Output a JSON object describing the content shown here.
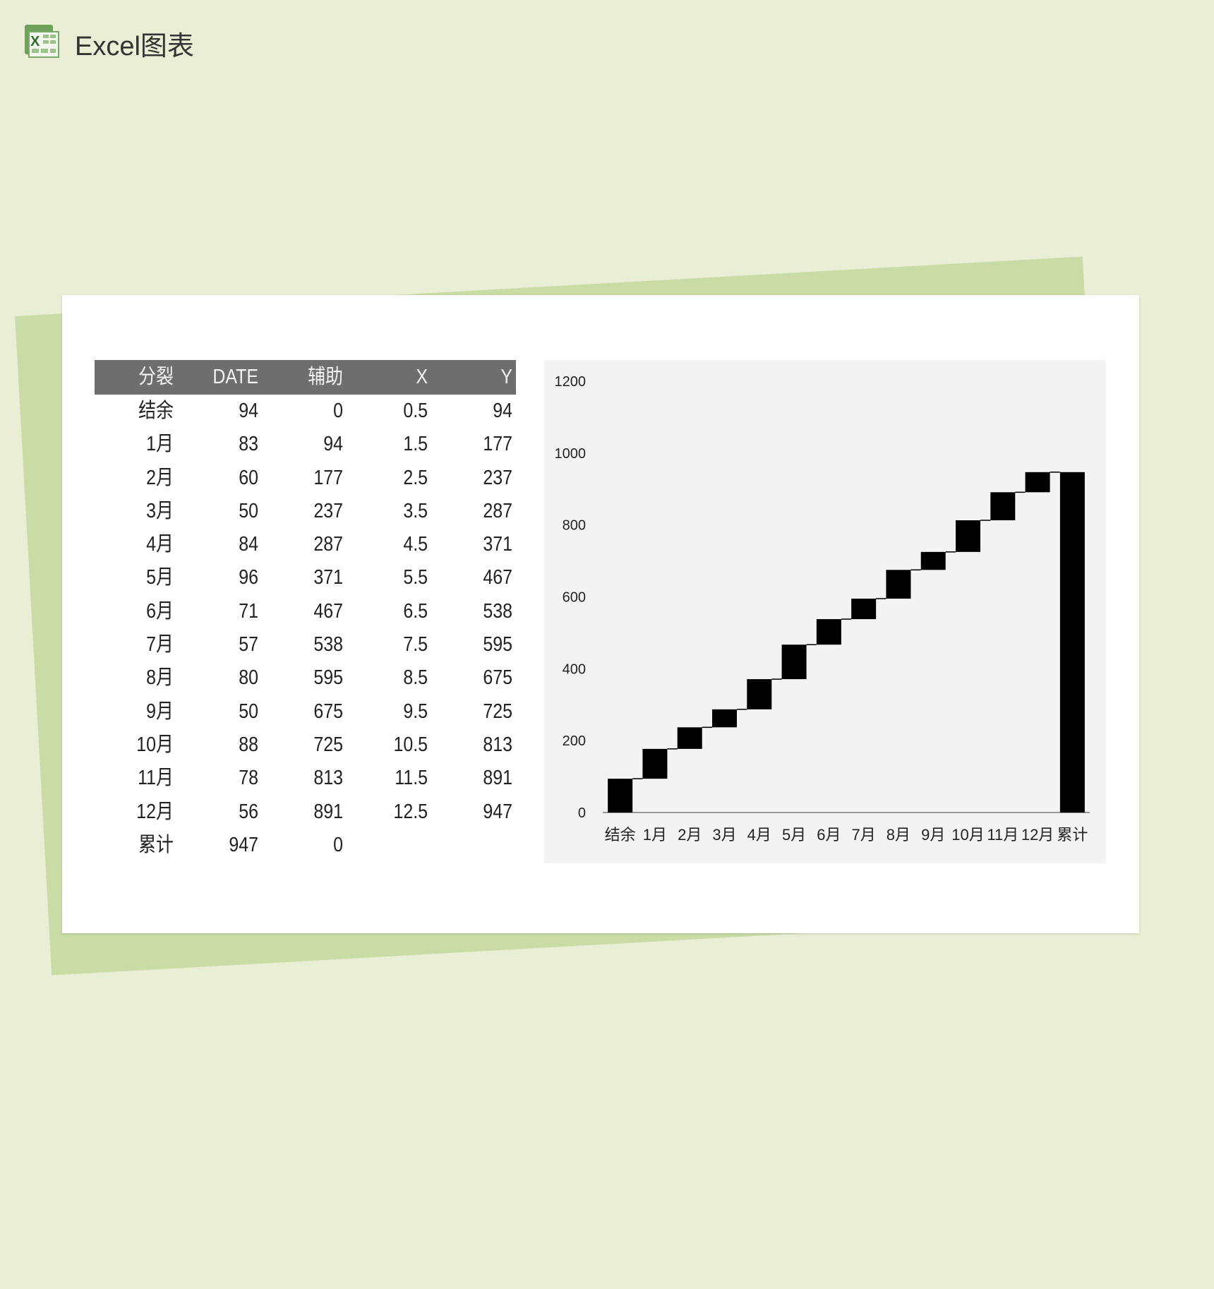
{
  "header": {
    "title": "Excel图表",
    "icon": "excel-icon"
  },
  "table": {
    "columns": [
      "分裂",
      "DATE",
      "辅助",
      "X",
      "Y"
    ],
    "rows": [
      [
        "结余",
        "94",
        "0",
        "0.5",
        "94"
      ],
      [
        "1月",
        "83",
        "94",
        "1.5",
        "177"
      ],
      [
        "2月",
        "60",
        "177",
        "2.5",
        "237"
      ],
      [
        "3月",
        "50",
        "237",
        "3.5",
        "287"
      ],
      [
        "4月",
        "84",
        "287",
        "4.5",
        "371"
      ],
      [
        "5月",
        "96",
        "371",
        "5.5",
        "467"
      ],
      [
        "6月",
        "71",
        "467",
        "6.5",
        "538"
      ],
      [
        "7月",
        "57",
        "538",
        "7.5",
        "595"
      ],
      [
        "8月",
        "80",
        "595",
        "8.5",
        "675"
      ],
      [
        "9月",
        "50",
        "675",
        "9.5",
        "725"
      ],
      [
        "10月",
        "88",
        "725",
        "10.5",
        "813"
      ],
      [
        "11月",
        "78",
        "813",
        "11.5",
        "891"
      ],
      [
        "12月",
        "56",
        "891",
        "12.5",
        "947"
      ],
      [
        "累计",
        "947",
        "0",
        "",
        ""
      ]
    ],
    "header_color": "#6e6e6e"
  },
  "chart_data": {
    "type": "bar",
    "subtype": "waterfall (stacked bar with invisible base)",
    "categories": [
      "结余",
      "1月",
      "2月",
      "3月",
      "4月",
      "5月",
      "6月",
      "7月",
      "8月",
      "9月",
      "10月",
      "11月",
      "12月",
      "累计"
    ],
    "series": [
      {
        "name": "辅助",
        "values": [
          0,
          94,
          177,
          237,
          287,
          371,
          467,
          538,
          595,
          675,
          725,
          813,
          891,
          0
        ],
        "visible": false
      },
      {
        "name": "DATE",
        "values": [
          94,
          83,
          60,
          50,
          84,
          96,
          71,
          57,
          80,
          50,
          88,
          78,
          56,
          947
        ],
        "color": "#000000"
      }
    ],
    "connector": {
      "x": [
        0.5,
        1.5,
        2.5,
        3.5,
        4.5,
        5.5,
        6.5,
        7.5,
        8.5,
        9.5,
        10.5,
        11.5,
        12.5
      ],
      "y": [
        94,
        177,
        237,
        287,
        371,
        467,
        538,
        595,
        675,
        725,
        813,
        891,
        947
      ]
    },
    "yticks": [
      "0",
      "200",
      "400",
      "600",
      "800",
      "1000",
      "1200"
    ],
    "ylim": [
      0,
      1200
    ],
    "grid": false,
    "legend": "none",
    "background": "#f3f3f3"
  }
}
